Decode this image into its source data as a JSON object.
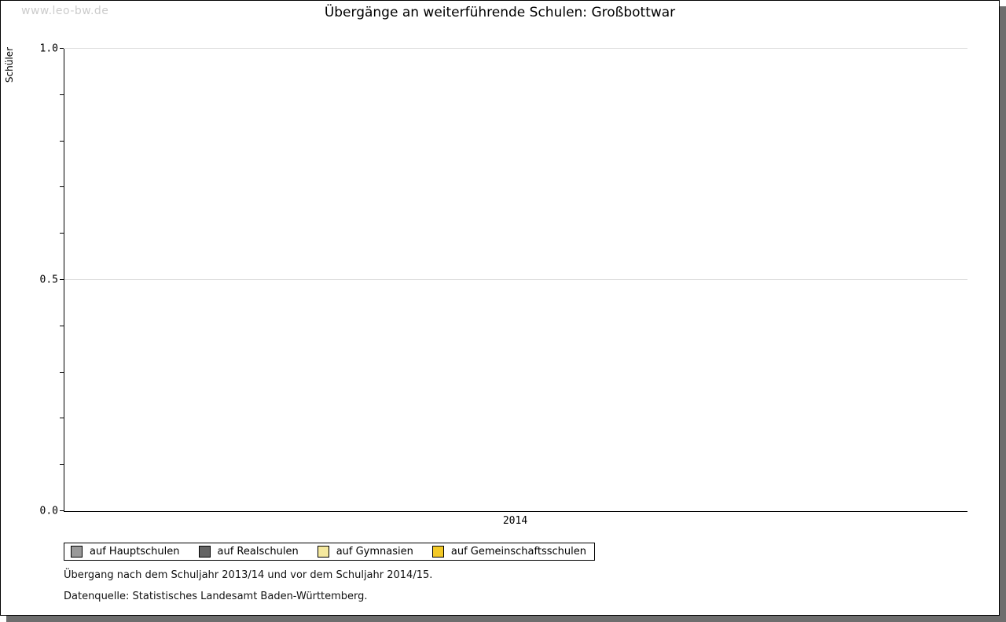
{
  "watermark": "www.leo-bw.de",
  "footnotes": [
    "Übergang nach dem Schuljahr 2013/14 und vor dem Schuljahr 2014/15.",
    "Datenquelle: Statistisches Landesamt Baden-Württemberg."
  ],
  "chart_data": {
    "type": "bar",
    "title": "Übergänge an weiterführende Schulen: Großbottwar",
    "categories": [
      "2014"
    ],
    "series": [
      {
        "name": "auf Hauptschulen",
        "color": "#999999",
        "values": [
          null
        ]
      },
      {
        "name": "auf Realschulen",
        "color": "#646464",
        "values": [
          null
        ]
      },
      {
        "name": "auf Gymnasien",
        "color": "#f5e99f",
        "values": [
          null
        ]
      },
      {
        "name": "auf Gemeinschaftsschulen",
        "color": "#f3c927",
        "values": [
          null
        ]
      }
    ],
    "xlabel": "",
    "ylabel": "Schüler",
    "ylim": [
      0,
      1
    ],
    "y_tick_labels": [
      "0.0",
      "0.5",
      "1.0"
    ],
    "y_major_ticks": [
      0,
      0.5,
      1
    ],
    "y_minor_tick_step": 0.1,
    "gridline_positions": [
      0.5,
      1
    ],
    "grid": "horizontal-major-only",
    "legend_position": "bottom",
    "bars_rendered": false
  }
}
